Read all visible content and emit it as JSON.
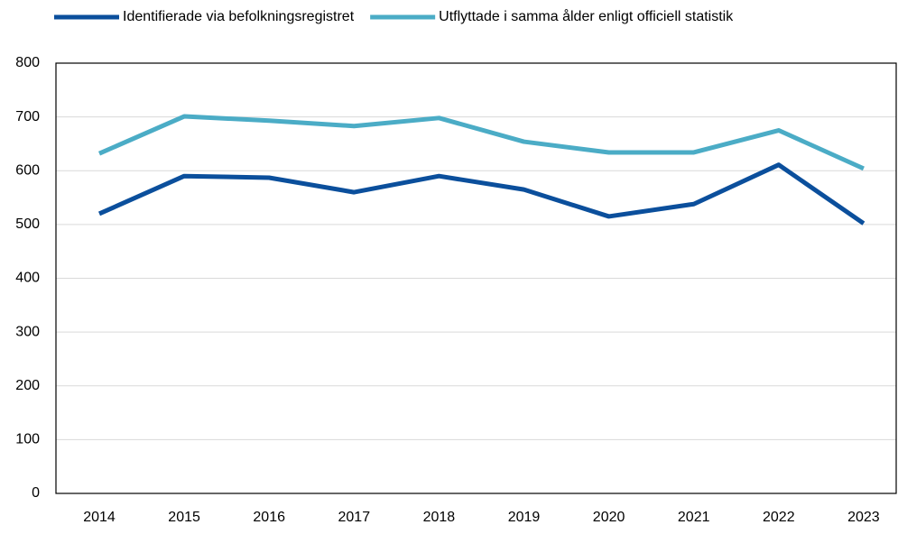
{
  "chart_data": {
    "type": "line",
    "categories": [
      "2014",
      "2015",
      "2016",
      "2017",
      "2018",
      "2019",
      "2020",
      "2021",
      "2022",
      "2023"
    ],
    "series": [
      {
        "name": "Identifierade via befolkningsregistret",
        "color": "#0b4f9c",
        "values": [
          520,
          590,
          587,
          560,
          590,
          565,
          515,
          538,
          611,
          502
        ]
      },
      {
        "name": "Utflyttade i samma ålder enligt officiell statistik",
        "color": "#4bacc6",
        "values": [
          632,
          701,
          693,
          683,
          698,
          654,
          634,
          634,
          675,
          604
        ]
      }
    ],
    "ylim": [
      0,
      800
    ],
    "yticks": [
      0,
      100,
      200,
      300,
      400,
      500,
      600,
      700,
      800
    ],
    "grid": true,
    "legend": "top"
  }
}
